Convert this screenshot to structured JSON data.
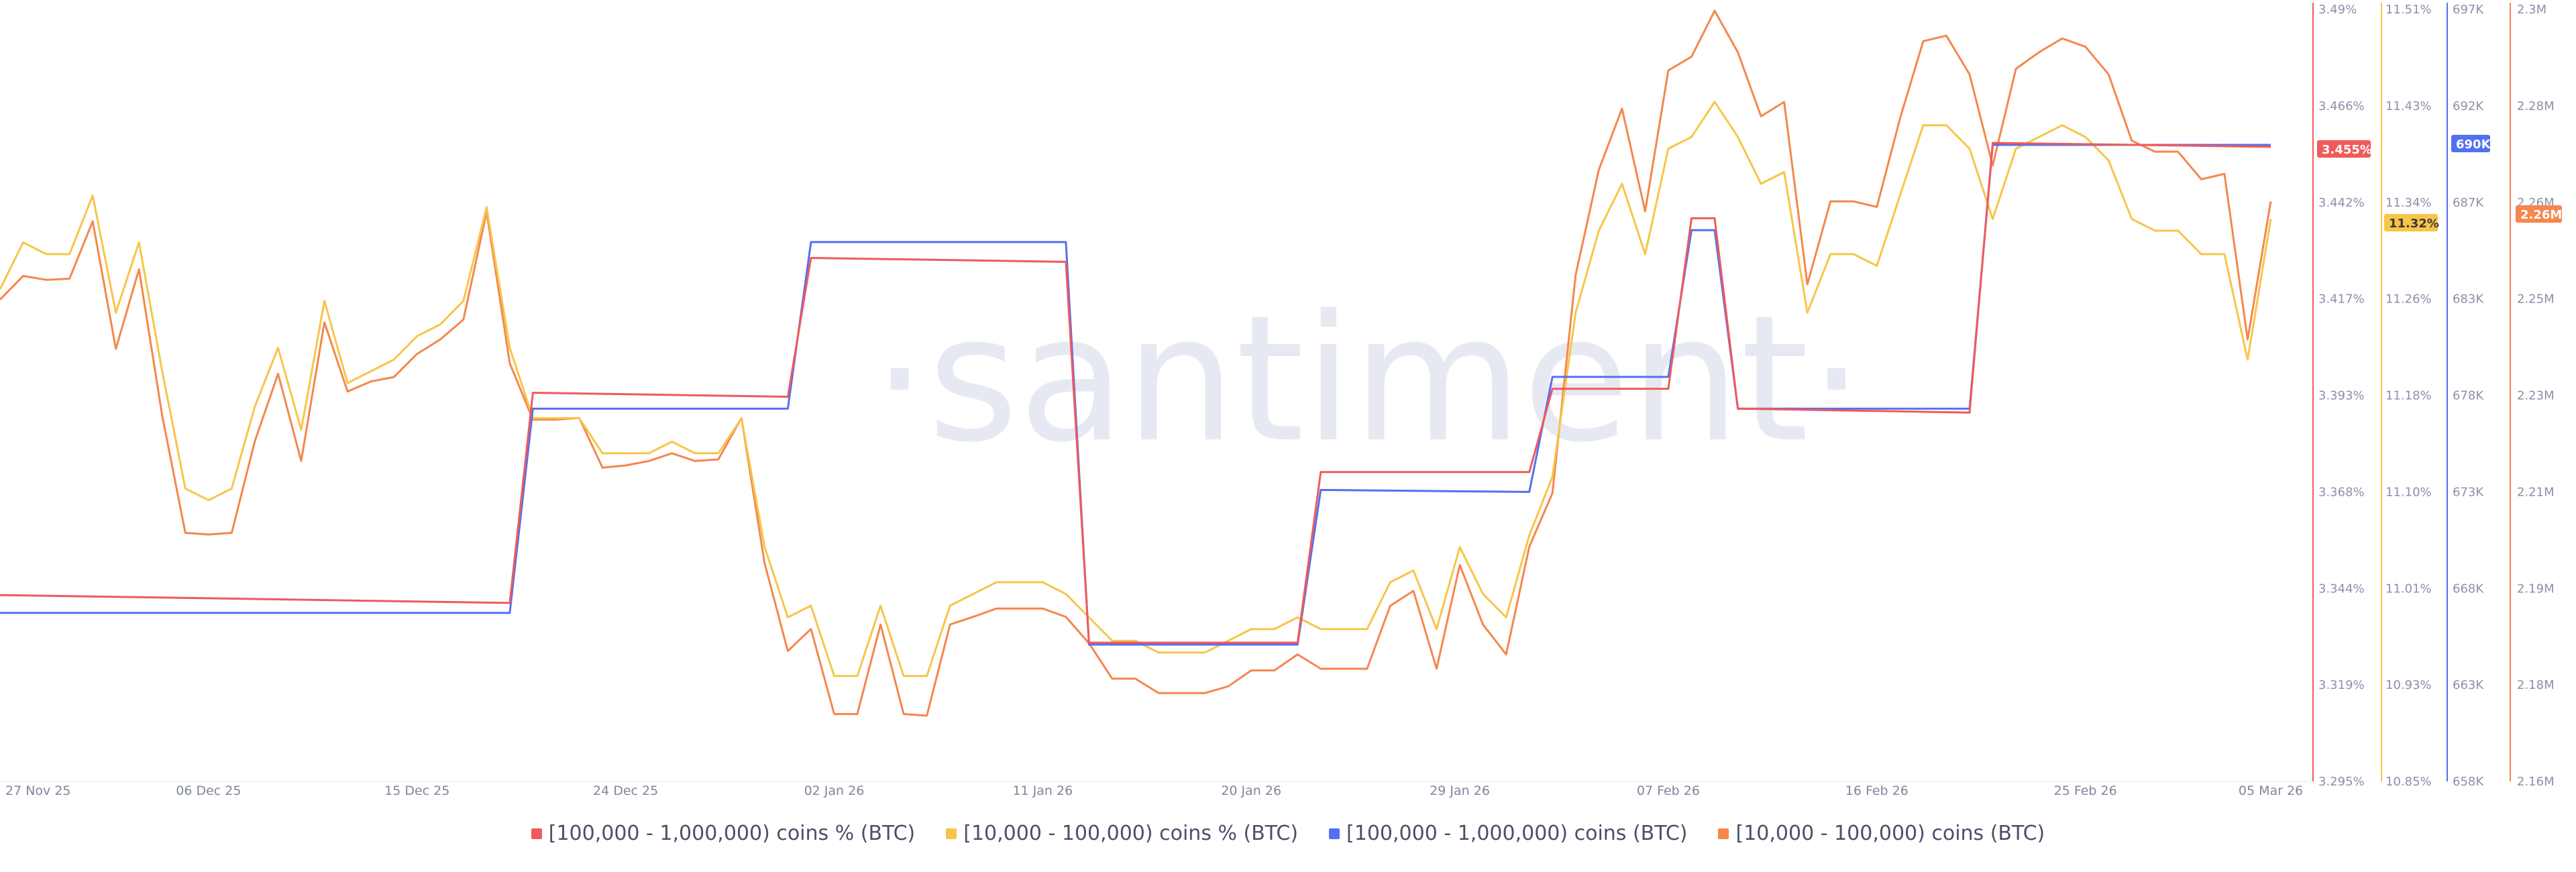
{
  "watermark": "·santiment·",
  "chart_data": {
    "type": "line",
    "x_ticks": [
      "27 Nov 25",
      "06 Dec 25",
      "15 Dec 25",
      "24 Dec 25",
      "02 Jan 26",
      "11 Jan 26",
      "20 Jan 26",
      "29 Jan 26",
      "07 Feb 26",
      "16 Feb 26",
      "25 Feb 26",
      "05 Mar 26"
    ],
    "x_range": [
      "2025-11-27",
      "2026-03-05"
    ],
    "axes": [
      {
        "id": "pct_100k",
        "color": "#f05a5a",
        "ticks": [
          "3.49%",
          "3.466%",
          "3.442%",
          "3.417%",
          "3.393%",
          "3.368%",
          "3.344%",
          "3.319%",
          "3.295%"
        ],
        "range": [
          3.295,
          3.49
        ],
        "badge": "3.455%"
      },
      {
        "id": "pct_10k",
        "color": "#f7c548",
        "ticks": [
          "11.51%",
          "11.43%",
          "11.34%",
          "11.26%",
          "11.18%",
          "11.10%",
          "11.01%",
          "10.93%",
          "10.85%"
        ],
        "range": [
          10.85,
          11.51
        ],
        "badge": "11.32%"
      },
      {
        "id": "coins_100k",
        "color": "#5470f0",
        "ticks": [
          "697K",
          "692K",
          "687K",
          "683K",
          "678K",
          "673K",
          "668K",
          "663K",
          "658K"
        ],
        "range": [
          658000,
          697000
        ],
        "badge": "690K"
      },
      {
        "id": "coins_10k",
        "color": "#f5874d",
        "ticks": [
          "2.3M",
          "2.28M",
          "2.26M",
          "2.25M",
          "2.23M",
          "2.21M",
          "2.19M",
          "2.18M",
          "2.16M"
        ],
        "range": [
          2160000,
          2300000
        ],
        "badge": "2.26M"
      }
    ],
    "series": [
      {
        "name": "[100,000  - 1,000,000) coins % (BTC)",
        "axis": "pct_100k",
        "color": "#f05a5a",
        "points": [
          [
            "2025-11-27",
            3.342
          ],
          [
            "2025-12-19",
            3.34
          ],
          [
            "2025-12-20",
            3.393
          ],
          [
            "2025-12-31",
            3.392
          ],
          [
            "2026-01-01",
            3.427
          ],
          [
            "2026-01-12",
            3.426
          ],
          [
            "2026-01-13",
            3.33
          ],
          [
            "2026-01-22",
            3.33
          ],
          [
            "2026-01-23",
            3.373
          ],
          [
            "2026-02-01",
            3.373
          ],
          [
            "2026-02-02",
            3.394
          ],
          [
            "2026-02-07",
            3.394
          ],
          [
            "2026-02-08",
            3.437
          ],
          [
            "2026-02-09",
            3.437
          ],
          [
            "2026-02-10",
            3.389
          ],
          [
            "2026-02-20",
            3.388
          ],
          [
            "2026-02-21",
            3.456
          ],
          [
            "2026-03-05",
            3.455
          ]
        ]
      },
      {
        "name": "[10,000 - 100,000) coins % (BTC)",
        "axis": "pct_10k",
        "color": "#f7c548",
        "points": [
          [
            "2025-11-27",
            11.27
          ],
          [
            "2025-11-28",
            11.31
          ],
          [
            "2025-11-29",
            11.3
          ],
          [
            "2025-11-30",
            11.3
          ],
          [
            "2025-12-01",
            11.35
          ],
          [
            "2025-12-02",
            11.25
          ],
          [
            "2025-12-03",
            11.31
          ],
          [
            "2025-12-04",
            11.2
          ],
          [
            "2025-12-05",
            11.1
          ],
          [
            "2025-12-06",
            11.09
          ],
          [
            "2025-12-07",
            11.1
          ],
          [
            "2025-12-08",
            11.17
          ],
          [
            "2025-12-09",
            11.22
          ],
          [
            "2025-12-10",
            11.15
          ],
          [
            "2025-12-11",
            11.26
          ],
          [
            "2025-12-12",
            11.19
          ],
          [
            "2025-12-13",
            11.2
          ],
          [
            "2025-12-14",
            11.21
          ],
          [
            "2025-12-15",
            11.23
          ],
          [
            "2025-12-16",
            11.24
          ],
          [
            "2025-12-17",
            11.26
          ],
          [
            "2025-12-18",
            11.34
          ],
          [
            "2025-12-19",
            11.22
          ],
          [
            "2025-12-20",
            11.16
          ],
          [
            "2025-12-21",
            11.16
          ],
          [
            "2025-12-22",
            11.16
          ],
          [
            "2025-12-23",
            11.13
          ],
          [
            "2025-12-24",
            11.13
          ],
          [
            "2025-12-25",
            11.13
          ],
          [
            "2025-12-26",
            11.14
          ],
          [
            "2025-12-27",
            11.13
          ],
          [
            "2025-12-28",
            11.13
          ],
          [
            "2025-12-29",
            11.16
          ],
          [
            "2025-12-30",
            11.05
          ],
          [
            "2025-12-31",
            10.99
          ],
          [
            "2026-01-01",
            11.0
          ],
          [
            "2026-01-02",
            10.94
          ],
          [
            "2026-01-03",
            10.94
          ],
          [
            "2026-01-04",
            11.0
          ],
          [
            "2026-01-05",
            10.94
          ],
          [
            "2026-01-06",
            10.94
          ],
          [
            "2026-01-07",
            11.0
          ],
          [
            "2026-01-08",
            11.01
          ],
          [
            "2026-01-09",
            11.02
          ],
          [
            "2026-01-10",
            11.02
          ],
          [
            "2026-01-11",
            11.02
          ],
          [
            "2026-01-12",
            11.01
          ],
          [
            "2026-01-13",
            10.99
          ],
          [
            "2026-01-14",
            10.97
          ],
          [
            "2026-01-15",
            10.97
          ],
          [
            "2026-01-16",
            10.96
          ],
          [
            "2026-01-17",
            10.96
          ],
          [
            "2026-01-18",
            10.96
          ],
          [
            "2026-01-19",
            10.97
          ],
          [
            "2026-01-20",
            10.98
          ],
          [
            "2026-01-21",
            10.98
          ],
          [
            "2026-01-22",
            10.99
          ],
          [
            "2026-01-23",
            10.98
          ],
          [
            "2026-01-24",
            10.98
          ],
          [
            "2026-01-25",
            10.98
          ],
          [
            "2026-01-26",
            11.02
          ],
          [
            "2026-01-27",
            11.03
          ],
          [
            "2026-01-28",
            10.98
          ],
          [
            "2026-01-29",
            11.05
          ],
          [
            "2026-01-30",
            11.01
          ],
          [
            "2026-01-31",
            10.99
          ],
          [
            "2026-02-01",
            11.06
          ],
          [
            "2026-02-02",
            11.11
          ],
          [
            "2026-02-03",
            11.25
          ],
          [
            "2026-02-04",
            11.32
          ],
          [
            "2026-02-05",
            11.36
          ],
          [
            "2026-02-06",
            11.3
          ],
          [
            "2026-02-07",
            11.39
          ],
          [
            "2026-02-08",
            11.4
          ],
          [
            "2026-02-09",
            11.43
          ],
          [
            "2026-02-10",
            11.4
          ],
          [
            "2026-02-11",
            11.36
          ],
          [
            "2026-02-12",
            11.37
          ],
          [
            "2026-02-13",
            11.25
          ],
          [
            "2026-02-14",
            11.3
          ],
          [
            "2026-02-15",
            11.3
          ],
          [
            "2026-02-16",
            11.29
          ],
          [
            "2026-02-17",
            11.35
          ],
          [
            "2026-02-18",
            11.41
          ],
          [
            "2026-02-19",
            11.41
          ],
          [
            "2026-02-20",
            11.39
          ],
          [
            "2026-02-21",
            11.33
          ],
          [
            "2026-02-22",
            11.39
          ],
          [
            "2026-02-23",
            11.4
          ],
          [
            "2026-02-24",
            11.41
          ],
          [
            "2026-02-25",
            11.4
          ],
          [
            "2026-02-26",
            11.38
          ],
          [
            "2026-02-27",
            11.33
          ],
          [
            "2026-02-28",
            11.32
          ],
          [
            "2026-03-01",
            11.32
          ],
          [
            "2026-03-02",
            11.3
          ],
          [
            "2026-03-03",
            11.3
          ],
          [
            "2026-03-04",
            11.21
          ],
          [
            "2026-03-05",
            11.33
          ]
        ]
      },
      {
        "name": "[100,000  - 1,000,000) coins (BTC)",
        "axis": "coins_100k",
        "color": "#5470f0",
        "points": [
          [
            "2025-11-27",
            666500
          ],
          [
            "2025-12-19",
            666500
          ],
          [
            "2025-12-20",
            676800
          ],
          [
            "2025-12-31",
            676800
          ],
          [
            "2026-01-01",
            685200
          ],
          [
            "2026-01-12",
            685200
          ],
          [
            "2026-01-13",
            664900
          ],
          [
            "2026-01-22",
            664900
          ],
          [
            "2026-01-23",
            672700
          ],
          [
            "2026-02-01",
            672600
          ],
          [
            "2026-02-02",
            678400
          ],
          [
            "2026-02-07",
            678400
          ],
          [
            "2026-02-08",
            685800
          ],
          [
            "2026-02-09",
            685800
          ],
          [
            "2026-02-10",
            676800
          ],
          [
            "2026-02-20",
            676800
          ],
          [
            "2026-02-21",
            690100
          ],
          [
            "2026-03-05",
            690100
          ]
        ]
      },
      {
        "name": "[10,000 - 100,000) coins (BTC)",
        "axis": "coins_10k",
        "color": "#f5874d",
        "points": [
          [
            "2025-11-27",
            2.2472
          ],
          [
            "2025-11-28",
            2.2515
          ],
          [
            "2025-11-29",
            2.2508
          ],
          [
            "2025-11-30",
            2.251
          ],
          [
            "2025-12-01",
            2.2614
          ],
          [
            "2025-12-02",
            2.2383
          ],
          [
            "2025-12-03",
            2.2527
          ],
          [
            "2025-12-04",
            2.2262
          ],
          [
            "2025-12-05",
            2.205
          ],
          [
            "2025-12-06",
            2.2047
          ],
          [
            "2025-12-07",
            2.205
          ],
          [
            "2025-12-08",
            2.2216
          ],
          [
            "2025-12-09",
            2.2338
          ],
          [
            "2025-12-10",
            2.218
          ],
          [
            "2025-12-11",
            2.2431
          ],
          [
            "2025-12-12",
            2.2306
          ],
          [
            "2025-12-13",
            2.2324
          ],
          [
            "2025-12-14",
            2.2332
          ],
          [
            "2025-12-15",
            2.2374
          ],
          [
            "2025-12-16",
            2.24
          ],
          [
            "2025-12-17",
            2.2436
          ],
          [
            "2025-12-18",
            2.2631
          ],
          [
            "2025-12-19",
            2.2357
          ],
          [
            "2025-12-20",
            2.2255
          ],
          [
            "2025-12-21",
            2.2255
          ],
          [
            "2025-12-22",
            2.2258
          ],
          [
            "2025-12-23",
            2.2168
          ],
          [
            "2025-12-24",
            2.2172
          ],
          [
            "2025-12-25",
            2.218
          ],
          [
            "2025-12-26",
            2.2194
          ],
          [
            "2025-12-27",
            2.218
          ],
          [
            "2025-12-28",
            2.2183
          ],
          [
            "2025-12-29",
            2.2258
          ],
          [
            "2025-12-30",
            2.1995
          ],
          [
            "2025-12-31",
            2.1836
          ],
          [
            "2026-01-01",
            2.1876
          ],
          [
            "2026-01-02",
            2.1722
          ],
          [
            "2026-01-03",
            2.1722
          ],
          [
            "2026-01-04",
            2.1884
          ],
          [
            "2026-01-05",
            2.1722
          ],
          [
            "2026-01-06",
            2.1719
          ],
          [
            "2026-01-07",
            2.1884
          ],
          [
            "2026-01-08",
            2.1898
          ],
          [
            "2026-01-09",
            2.1913
          ],
          [
            "2026-01-10",
            2.1913
          ],
          [
            "2026-01-11",
            2.1913
          ],
          [
            "2026-01-12",
            2.1898
          ],
          [
            "2026-01-13",
            2.185
          ],
          [
            "2026-01-14",
            2.1786
          ],
          [
            "2026-01-15",
            2.1786
          ],
          [
            "2026-01-16",
            2.176
          ],
          [
            "2026-01-17",
            2.176
          ],
          [
            "2026-01-18",
            2.176
          ],
          [
            "2026-01-19",
            2.1772
          ],
          [
            "2026-01-20",
            2.1801
          ],
          [
            "2026-01-21",
            2.1801
          ],
          [
            "2026-01-22",
            2.183
          ],
          [
            "2026-01-23",
            2.1804
          ],
          [
            "2026-01-24",
            2.1804
          ],
          [
            "2026-01-25",
            2.1804
          ],
          [
            "2026-01-26",
            2.1918
          ],
          [
            "2026-01-27",
            2.1945
          ],
          [
            "2026-01-28",
            2.1804
          ],
          [
            "2026-01-29",
            2.1992
          ],
          [
            "2026-01-30",
            2.1884
          ],
          [
            "2026-01-31",
            2.183
          ],
          [
            "2026-02-01",
            2.2025
          ],
          [
            "2026-02-02",
            2.2122
          ],
          [
            "2026-02-03",
            2.2517
          ],
          [
            "2026-02-04",
            2.2707
          ],
          [
            "2026-02-05",
            2.2818
          ],
          [
            "2026-02-06",
            2.2632
          ],
          [
            "2026-02-07",
            2.2887
          ],
          [
            "2026-02-08",
            2.2912
          ],
          [
            "2026-02-09",
            2.2995
          ],
          [
            "2026-02-10",
            2.292
          ],
          [
            "2026-02-11",
            2.2804
          ],
          [
            "2026-02-12",
            2.283
          ],
          [
            "2026-02-13",
            2.25
          ],
          [
            "2026-02-14",
            2.265
          ],
          [
            "2026-02-15",
            2.265
          ],
          [
            "2026-02-16",
            2.264
          ],
          [
            "2026-02-17",
            2.28
          ],
          [
            "2026-02-18",
            2.294
          ],
          [
            "2026-02-19",
            2.295
          ],
          [
            "2026-02-20",
            2.288
          ],
          [
            "2026-02-21",
            2.2715
          ],
          [
            "2026-02-22",
            2.289
          ],
          [
            "2026-02-23",
            2.292
          ],
          [
            "2026-02-24",
            2.2945
          ],
          [
            "2026-02-25",
            2.293
          ],
          [
            "2026-02-26",
            2.288
          ],
          [
            "2026-02-27",
            2.276
          ],
          [
            "2026-02-28",
            2.274
          ],
          [
            "2026-03-01",
            2.274
          ],
          [
            "2026-03-02",
            2.269
          ],
          [
            "2026-03-03",
            2.27
          ],
          [
            "2026-03-04",
            2.24
          ],
          [
            "2026-03-05",
            2.265
          ]
        ]
      }
    ],
    "coins_10k_unit": "M",
    "legend": "bottom-center",
    "grid": false
  }
}
